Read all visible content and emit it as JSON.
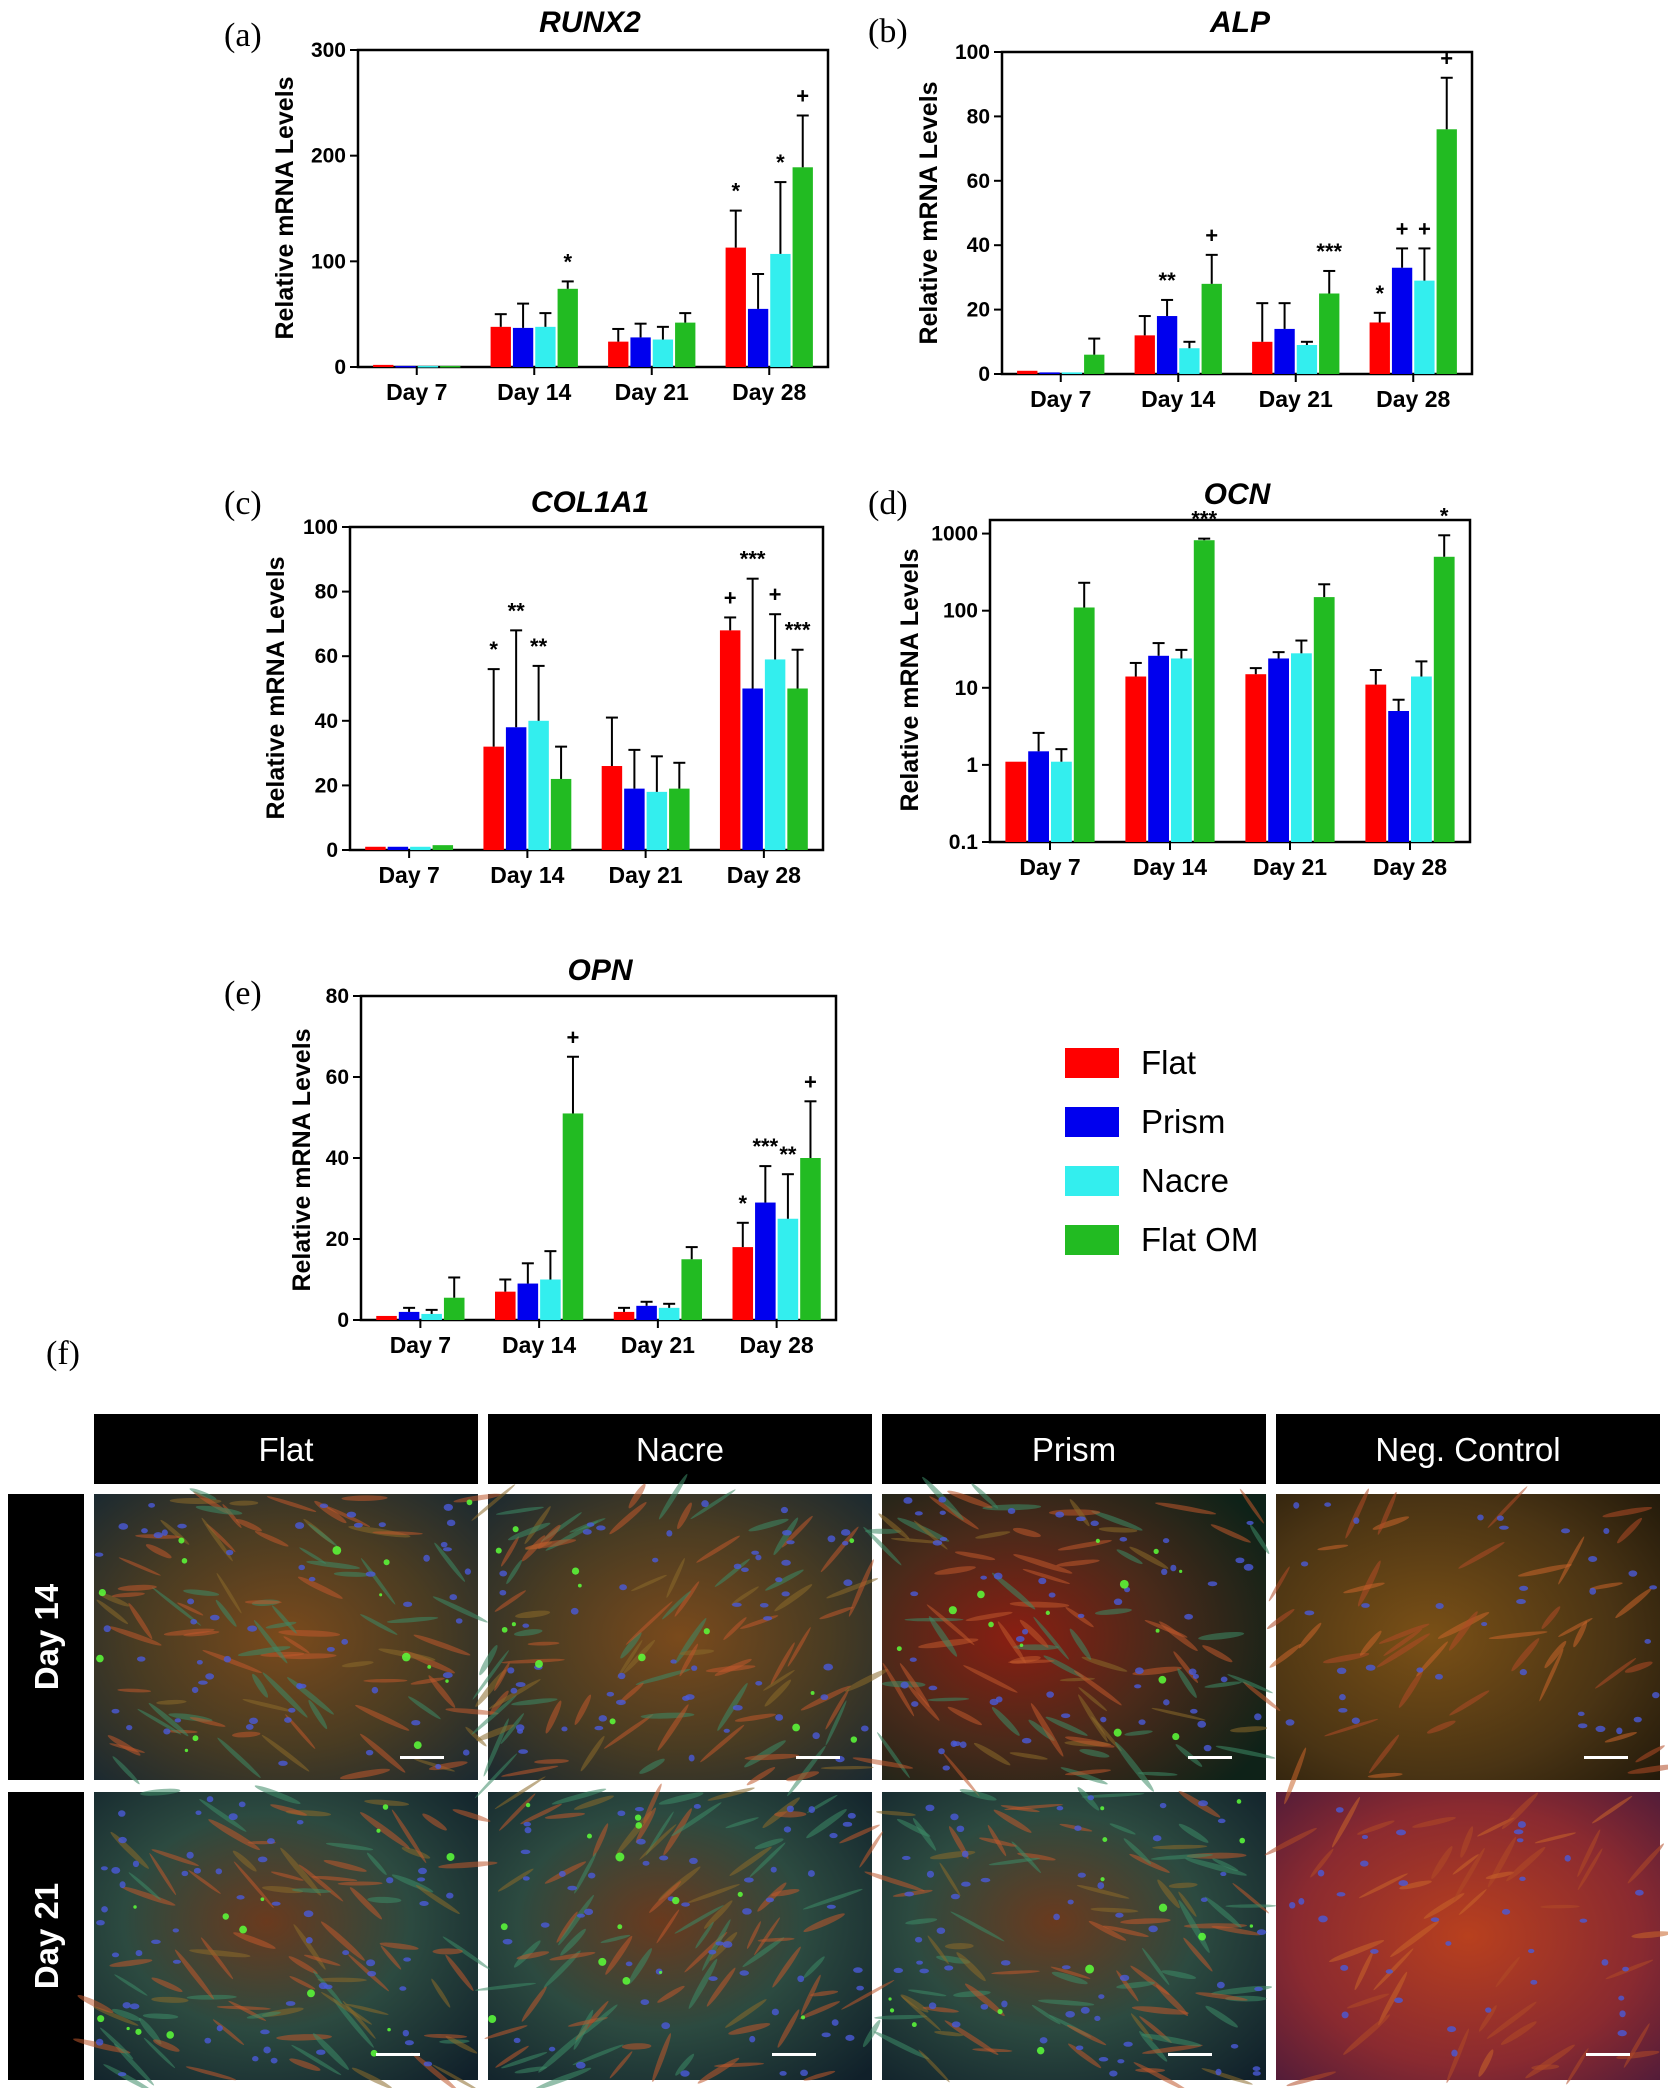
{
  "series_colors": {
    "Flat": "#ff0000",
    "Prism": "#0000ee",
    "Nacre": "#33eeee",
    "Flat OM": "#22bb22"
  },
  "legend": [
    "Flat",
    "Prism",
    "Nacre",
    "Flat OM"
  ],
  "chart_data": [
    {
      "id": "a",
      "panel": "(a)",
      "type": "bar",
      "title": "RUNX2",
      "ylabel": "Relative mRNA Levels",
      "scale": "linear",
      "ylim": [
        0,
        300
      ],
      "yticks": [
        0,
        100,
        200,
        300
      ],
      "ytick_labels": [
        "0",
        "100",
        "200",
        "300"
      ],
      "categories": [
        "Day 7",
        "Day 14",
        "Day 21",
        "Day 28"
      ],
      "series": [
        {
          "name": "Flat",
          "values": [
            2,
            38,
            24,
            113
          ],
          "errors": [
            0,
            12,
            12,
            35
          ],
          "annotations": [
            "",
            "",
            "",
            "*"
          ]
        },
        {
          "name": "Prism",
          "values": [
            1,
            37,
            28,
            55
          ],
          "errors": [
            0,
            23,
            13,
            33
          ],
          "annotations": [
            "",
            "",
            "",
            ""
          ]
        },
        {
          "name": "Nacre",
          "values": [
            1,
            38,
            26,
            107
          ],
          "errors": [
            0,
            13,
            12,
            68
          ],
          "annotations": [
            "",
            "",
            "",
            "*"
          ]
        },
        {
          "name": "Flat OM",
          "values": [
            1,
            74,
            42,
            189
          ],
          "errors": [
            0,
            7,
            9,
            49
          ],
          "annotations": [
            "",
            "*",
            "",
            "+"
          ]
        }
      ]
    },
    {
      "id": "b",
      "panel": "(b)",
      "type": "bar",
      "title": "ALP",
      "ylabel": "Relative mRNA Levels",
      "scale": "linear",
      "ylim": [
        0,
        100
      ],
      "yticks": [
        0,
        20,
        40,
        60,
        80,
        100
      ],
      "ytick_labels": [
        "0",
        "20",
        "40",
        "60",
        "80",
        "100"
      ],
      "categories": [
        "Day 7",
        "Day 14",
        "Day 21",
        "Day 28"
      ],
      "series": [
        {
          "name": "Flat",
          "values": [
            1,
            12,
            10,
            16
          ],
          "errors": [
            0,
            6,
            12,
            3
          ],
          "annotations": [
            "",
            "",
            "",
            "*"
          ]
        },
        {
          "name": "Prism",
          "values": [
            0.5,
            18,
            14,
            33
          ],
          "errors": [
            0,
            5,
            8,
            6
          ],
          "annotations": [
            "",
            "**",
            "",
            "+"
          ]
        },
        {
          "name": "Nacre",
          "values": [
            0.5,
            8,
            9,
            29
          ],
          "errors": [
            0,
            2,
            1,
            10
          ],
          "annotations": [
            "",
            "",
            "",
            "+"
          ]
        },
        {
          "name": "Flat OM",
          "values": [
            6,
            28,
            25,
            76
          ],
          "errors": [
            5,
            9,
            7,
            16
          ],
          "annotations": [
            "",
            "+",
            "***",
            "+"
          ]
        }
      ]
    },
    {
      "id": "c",
      "panel": "(c)",
      "type": "bar",
      "title": "COL1A1",
      "ylabel": "Relative mRNA Levels",
      "scale": "linear",
      "ylim": [
        0,
        100
      ],
      "yticks": [
        0,
        20,
        40,
        60,
        80,
        100
      ],
      "ytick_labels": [
        "0",
        "20",
        "40",
        "60",
        "80",
        "100"
      ],
      "categories": [
        "Day 7",
        "Day 14",
        "Day 21",
        "Day 28"
      ],
      "series": [
        {
          "name": "Flat",
          "values": [
            1,
            32,
            26,
            68
          ],
          "errors": [
            0,
            24,
            15,
            4
          ],
          "annotations": [
            "",
            "*",
            "",
            "+"
          ]
        },
        {
          "name": "Prism",
          "values": [
            1,
            38,
            19,
            50
          ],
          "errors": [
            0,
            30,
            12,
            34
          ],
          "annotations": [
            "",
            "**",
            "",
            "***"
          ]
        },
        {
          "name": "Nacre",
          "values": [
            1,
            40,
            18,
            59
          ],
          "errors": [
            0,
            17,
            11,
            14
          ],
          "annotations": [
            "",
            "**",
            "",
            "+"
          ]
        },
        {
          "name": "Flat OM",
          "values": [
            1.5,
            22,
            19,
            50
          ],
          "errors": [
            0,
            10,
            8,
            12
          ],
          "annotations": [
            "",
            "",
            "",
            "***"
          ]
        }
      ]
    },
    {
      "id": "d",
      "panel": "(d)",
      "type": "bar",
      "title": "OCN",
      "ylabel": "Relative mRNA Levels",
      "scale": "log",
      "ylim": [
        0.1,
        1500
      ],
      "yticks": [
        0.1,
        1,
        10,
        100,
        1000
      ],
      "ytick_labels": [
        "0.1",
        "1",
        "10",
        "100",
        "1000"
      ],
      "categories": [
        "Day 7",
        "Day 14",
        "Day 21",
        "Day 28"
      ],
      "series": [
        {
          "name": "Flat",
          "values": [
            1.1,
            14,
            15,
            11
          ],
          "errors": [
            0,
            7,
            3,
            6
          ],
          "annotations": [
            "",
            "",
            "",
            ""
          ]
        },
        {
          "name": "Prism",
          "values": [
            1.5,
            26,
            24,
            5
          ],
          "errors": [
            1.1,
            12,
            5,
            2
          ],
          "annotations": [
            "",
            "",
            "",
            ""
          ]
        },
        {
          "name": "Nacre",
          "values": [
            1.1,
            24,
            28,
            14
          ],
          "errors": [
            0.5,
            7,
            13,
            8
          ],
          "annotations": [
            "",
            "",
            "",
            ""
          ]
        },
        {
          "name": "Flat OM",
          "values": [
            110,
            820,
            150,
            500
          ],
          "errors": [
            120,
            40,
            70,
            450
          ],
          "annotations": [
            "",
            "***",
            "",
            "*"
          ]
        }
      ]
    },
    {
      "id": "e",
      "panel": "(e)",
      "type": "bar",
      "title": "OPN",
      "ylabel": "Relative mRNA Levels",
      "scale": "linear",
      "ylim": [
        0,
        80
      ],
      "yticks": [
        0,
        20,
        40,
        60,
        80
      ],
      "ytick_labels": [
        "0",
        "20",
        "40",
        "60",
        "80"
      ],
      "categories": [
        "Day 7",
        "Day 14",
        "Day 21",
        "Day 28"
      ],
      "series": [
        {
          "name": "Flat",
          "values": [
            1,
            7,
            2,
            18
          ],
          "errors": [
            0,
            3,
            1,
            6
          ],
          "annotations": [
            "",
            "",
            "",
            "*"
          ]
        },
        {
          "name": "Prism",
          "values": [
            2,
            9,
            3.5,
            29
          ],
          "errors": [
            1,
            5,
            1,
            9
          ],
          "annotations": [
            "",
            "",
            "",
            "***"
          ]
        },
        {
          "name": "Nacre",
          "values": [
            1.5,
            10,
            3,
            25
          ],
          "errors": [
            1,
            7,
            1,
            11
          ],
          "annotations": [
            "",
            "",
            "",
            "**"
          ]
        },
        {
          "name": "Flat OM",
          "values": [
            5.5,
            51,
            15,
            40
          ],
          "errors": [
            5,
            14,
            3,
            14
          ],
          "annotations": [
            "",
            "+",
            "",
            "+"
          ]
        }
      ]
    }
  ],
  "micrographs": {
    "panel": "(f)",
    "columns": [
      "Flat",
      "Nacre",
      "Prism",
      "Neg. Control"
    ],
    "rows": [
      "Day 14",
      "Day 21"
    ]
  }
}
